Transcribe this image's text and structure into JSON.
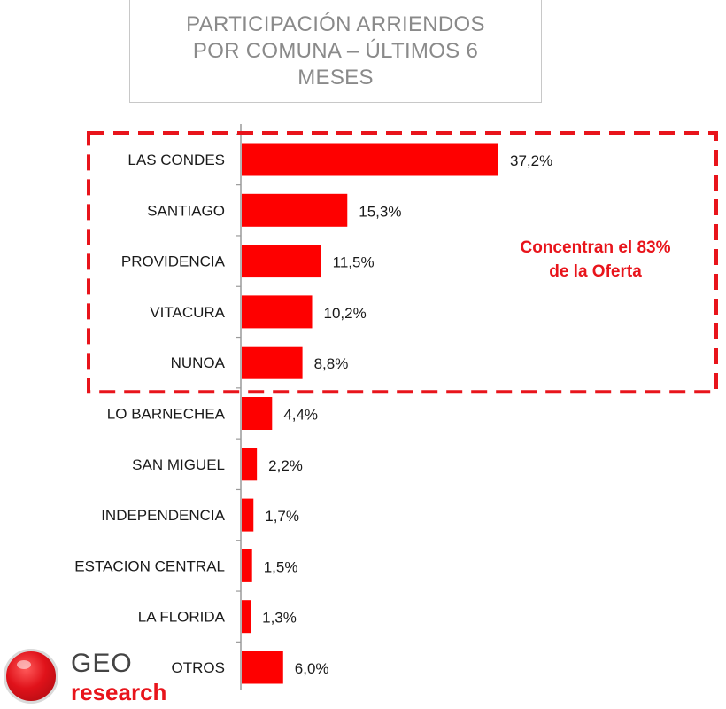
{
  "chart_data": {
    "type": "bar",
    "orientation": "horizontal",
    "title": "PARTICIPACIÓN ARRIENDOS POR COMUNA – ÚLTIMOS 6 MESES",
    "categories": [
      "LAS CONDES",
      "SANTIAGO",
      "PROVIDENCIA",
      "VITACURA",
      "NUNOA",
      "LO BARNECHEA",
      "SAN MIGUEL",
      "INDEPENDENCIA",
      "ESTACION CENTRAL",
      "LA FLORIDA",
      "OTROS"
    ],
    "values": [
      37.2,
      15.3,
      11.5,
      10.2,
      8.8,
      4.4,
      2.2,
      1.7,
      1.5,
      1.3,
      6.0
    ],
    "value_labels": [
      "37,2%",
      "15,3%",
      "11,5%",
      "10,2%",
      "8,8%",
      "4,4%",
      "2,2%",
      "1,7%",
      "1,5%",
      "1,3%",
      "6,0%"
    ],
    "unit": "%",
    "xlim": [
      0,
      40
    ],
    "grid": false,
    "bar_color": "#fe0000",
    "annotation": {
      "text_line1": "Concentran el 83%",
      "text_line2": "de la Oferta",
      "color": "#e8141b",
      "highlighted_categories": [
        "LAS CONDES",
        "SANTIAGO",
        "PROVIDENCIA",
        "VITACURA",
        "NUNOA"
      ]
    }
  },
  "logo": {
    "name_top": "GEO",
    "name_bottom": "research"
  }
}
